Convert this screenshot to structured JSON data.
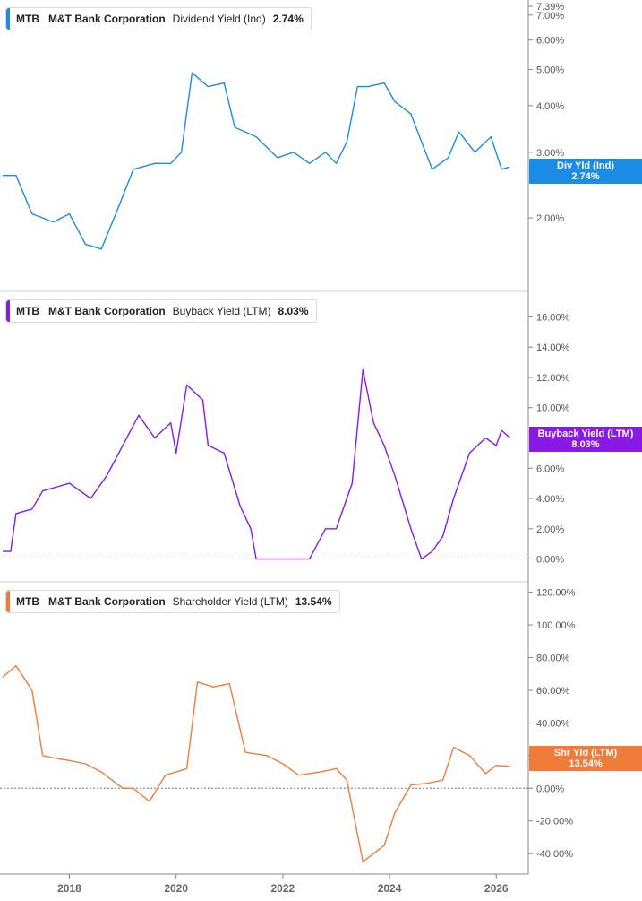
{
  "ticker": "MTB",
  "company": "M&T Bank Corporation",
  "chart_data": [
    {
      "type": "line",
      "metric": "Dividend Yield (Ind)",
      "last_value": "2.74%",
      "badge": [
        "Div Yld (Ind)",
        "2.74%"
      ],
      "color": "#1a8ce6",
      "scale": "log",
      "ylim": [
        1.5,
        7.39
      ],
      "yticks": [
        "2.00%",
        "3.00%",
        "4.00%",
        "5.00%",
        "6.00%",
        "7.00%",
        "7.39%"
      ],
      "ytick_values": [
        2,
        3,
        4,
        5,
        6,
        7,
        7.39
      ],
      "x": [
        2016.75,
        2017.0,
        2017.3,
        2017.7,
        2018.0,
        2018.3,
        2018.6,
        2018.9,
        2019.2,
        2019.6,
        2019.9,
        2020.1,
        2020.3,
        2020.6,
        2020.9,
        2021.1,
        2021.5,
        2021.9,
        2022.2,
        2022.5,
        2022.8,
        2023.0,
        2023.2,
        2023.4,
        2023.6,
        2023.9,
        2024.1,
        2024.4,
        2024.6,
        2024.8,
        2025.1,
        2025.3,
        2025.6,
        2025.9,
        2026.1,
        2026.25
      ],
      "values": [
        2.6,
        2.6,
        2.05,
        1.95,
        2.05,
        1.7,
        1.65,
        2.1,
        2.7,
        2.8,
        2.8,
        3.0,
        4.9,
        4.5,
        4.6,
        3.5,
        3.3,
        2.9,
        3.0,
        2.8,
        3.0,
        2.8,
        3.2,
        4.5,
        4.5,
        4.6,
        4.1,
        3.8,
        3.2,
        2.7,
        2.9,
        3.4,
        3.0,
        3.3,
        2.7,
        2.74
      ]
    },
    {
      "type": "line",
      "metric": "Buyback Yield (LTM)",
      "last_value": "8.03%",
      "badge": [
        "Buyback Yield (LTM)",
        "8.03%"
      ],
      "color": "#8a19e6",
      "ylim": [
        -0.5,
        16.5
      ],
      "yticks": [
        "0.00%",
        "2.00%",
        "4.00%",
        "6.00%",
        "8.00%",
        "10.00%",
        "12.00%",
        "14.00%",
        "16.00%"
      ],
      "ytick_values": [
        0,
        2,
        4,
        6,
        8,
        10,
        12,
        14,
        16
      ],
      "zero_line": true,
      "x": [
        2016.75,
        2016.9,
        2017.0,
        2017.3,
        2017.5,
        2017.8,
        2018.0,
        2018.4,
        2018.7,
        2019.0,
        2019.3,
        2019.6,
        2019.9,
        2020.0,
        2020.2,
        2020.5,
        2020.6,
        2020.9,
        2021.2,
        2021.4,
        2021.5,
        2022.0,
        2022.5,
        2022.8,
        2023.0,
        2023.3,
        2023.5,
        2023.7,
        2023.9,
        2024.1,
        2024.4,
        2024.6,
        2024.8,
        2025.0,
        2025.2,
        2025.5,
        2025.8,
        2026.0,
        2026.1,
        2026.25
      ],
      "values": [
        0.5,
        0.5,
        3.0,
        3.3,
        4.5,
        4.8,
        5.0,
        4.0,
        5.5,
        7.5,
        9.5,
        8.0,
        9.0,
        7.0,
        11.5,
        10.5,
        7.5,
        7.0,
        3.5,
        2.0,
        0,
        0,
        0,
        2.0,
        2.0,
        5.0,
        12.5,
        9.0,
        7.5,
        5.5,
        2.0,
        0,
        0.5,
        1.5,
        4.0,
        7.0,
        8.0,
        7.5,
        8.5,
        8.03
      ]
    },
    {
      "type": "line",
      "metric": "Shareholder Yield (LTM)",
      "last_value": "13.54%",
      "badge": [
        "Shr Yld (LTM)",
        "13.54%"
      ],
      "color": "#f07c3c",
      "ylim": [
        -58,
        128
      ],
      "yticks": [
        "-40.00%",
        "-20.00%",
        "0.00%",
        "20.00%",
        "40.00%",
        "60.00%",
        "80.00%",
        "100.00%",
        "120.00%"
      ],
      "ytick_values": [
        -40,
        -20,
        0,
        20,
        40,
        60,
        80,
        100,
        120
      ],
      "zero_line": true,
      "x": [
        2016.75,
        2017.0,
        2017.3,
        2017.5,
        2017.8,
        2018.0,
        2018.3,
        2018.6,
        2019.0,
        2019.2,
        2019.5,
        2019.8,
        2020.0,
        2020.2,
        2020.4,
        2020.7,
        2021.0,
        2021.3,
        2021.7,
        2022.0,
        2022.3,
        2022.7,
        2023.0,
        2023.2,
        2023.5,
        2023.7,
        2023.9,
        2024.1,
        2024.4,
        2024.7,
        2025.0,
        2025.2,
        2025.5,
        2025.8,
        2026.0,
        2026.25
      ],
      "values": [
        68,
        75,
        60,
        20,
        18,
        17,
        15,
        10,
        0,
        0,
        -8,
        8,
        10,
        12,
        65,
        62,
        64,
        22,
        20,
        15,
        8,
        10,
        12,
        5,
        -45,
        -40,
        -35,
        -15,
        2,
        3,
        5,
        25,
        20,
        9,
        14,
        13.54
      ]
    }
  ],
  "xticks": [
    "2018",
    "2020",
    "2022",
    "2024",
    "2026"
  ],
  "xtick_values": [
    2018,
    2020,
    2022,
    2024,
    2026
  ],
  "xlim": [
    2016.7,
    2026.6
  ]
}
